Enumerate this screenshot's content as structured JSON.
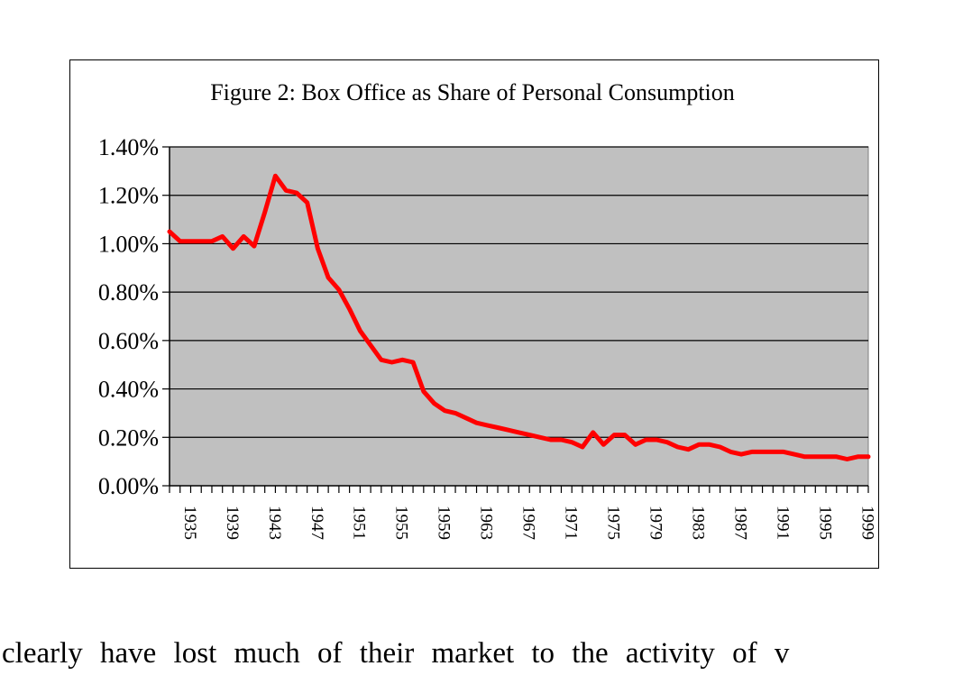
{
  "chart_data": {
    "type": "line",
    "title": "Figure 2: Box Office as Share of Personal Consumption",
    "xlabel": "",
    "ylabel": "",
    "ylim": [
      0,
      0.014
    ],
    "xlim": [
      1933,
      1999
    ],
    "y_ticks": [
      0,
      0.002,
      0.004,
      0.006,
      0.008,
      0.01,
      0.012,
      0.014
    ],
    "y_tick_labels": [
      "0.00%",
      "0.20%",
      "0.40%",
      "0.60%",
      "0.80%",
      "1.00%",
      "1.20%",
      "1.40%"
    ],
    "x_tick_labels": [
      "1935",
      "1939",
      "1943",
      "1947",
      "1951",
      "1955",
      "1959",
      "1963",
      "1967",
      "1971",
      "1975",
      "1979",
      "1983",
      "1987",
      "1991",
      "1995",
      "1999"
    ],
    "x_tick_values": [
      1935,
      1939,
      1943,
      1947,
      1951,
      1955,
      1959,
      1963,
      1967,
      1971,
      1975,
      1979,
      1983,
      1987,
      1991,
      1995,
      1999
    ],
    "grid": true,
    "legend": "none",
    "series": [
      {
        "name": "Box Office as Share of Personal Consumption",
        "color": "#ff0000",
        "x": [
          1933,
          1934,
          1935,
          1936,
          1937,
          1938,
          1939,
          1940,
          1941,
          1942,
          1943,
          1944,
          1945,
          1946,
          1947,
          1948,
          1949,
          1950,
          1951,
          1952,
          1953,
          1954,
          1955,
          1956,
          1957,
          1958,
          1959,
          1960,
          1961,
          1962,
          1963,
          1964,
          1965,
          1966,
          1967,
          1968,
          1969,
          1970,
          1971,
          1972,
          1973,
          1974,
          1975,
          1976,
          1977,
          1978,
          1979,
          1980,
          1981,
          1982,
          1983,
          1984,
          1985,
          1986,
          1987,
          1988,
          1989,
          1990,
          1991,
          1992,
          1993,
          1994,
          1995,
          1996,
          1997,
          1998,
          1999
        ],
        "values": [
          0.0105,
          0.0101,
          0.0101,
          0.0101,
          0.0101,
          0.0103,
          0.0098,
          0.0103,
          0.0099,
          0.0113,
          0.0128,
          0.0122,
          0.0121,
          0.0117,
          0.0098,
          0.0086,
          0.0081,
          0.0073,
          0.0064,
          0.0058,
          0.0052,
          0.0051,
          0.0052,
          0.0051,
          0.0039,
          0.0034,
          0.0031,
          0.003,
          0.0028,
          0.0026,
          0.0025,
          0.0024,
          0.0023,
          0.0022,
          0.0021,
          0.002,
          0.0019,
          0.0019,
          0.0018,
          0.0016,
          0.0022,
          0.0017,
          0.0021,
          0.0021,
          0.0017,
          0.0019,
          0.0019,
          0.0018,
          0.0016,
          0.0015,
          0.0017,
          0.0017,
          0.0016,
          0.0014,
          0.0013,
          0.0014,
          0.0014,
          0.0014,
          0.0014,
          0.0013,
          0.0012,
          0.0012,
          0.0012,
          0.0012,
          0.0011,
          0.0012,
          0.0012
        ]
      }
    ],
    "colors": {
      "plot_background": "#c0c0c0",
      "line": "#ff0000",
      "grid": "#000000"
    }
  },
  "body_text": "clearly have lost much of their market to the activity of v"
}
